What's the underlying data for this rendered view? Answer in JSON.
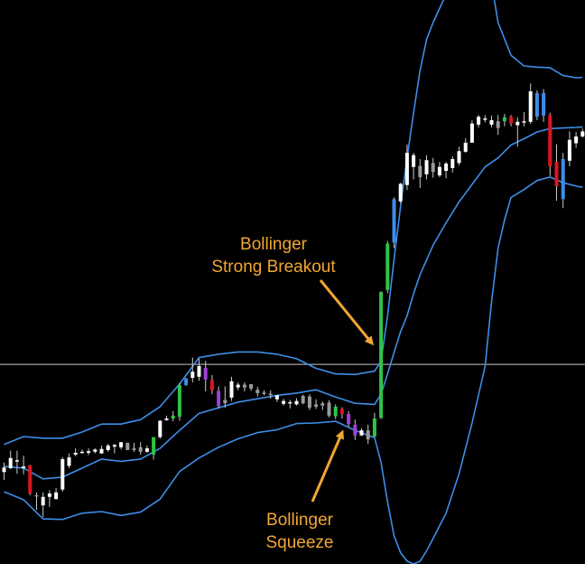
{
  "chart_data": {
    "type": "candlestick",
    "indicator": "Bollinger Bands",
    "colors": {
      "background": "#000000",
      "band": "#3d8ee8",
      "annotation": "#f2a633",
      "crosshair": "#c8c8c8",
      "candle_bull": "#ffffff",
      "candle_neutral": "#9a9a9a",
      "candle_green": "#2fc447",
      "candle_red": "#e0141e",
      "candle_blue": "#3d8ee8",
      "candle_purple": "#a040d8",
      "wick": "#c8c8c8"
    },
    "y_scale": {
      "top_value": 100,
      "bottom_value": 0
    },
    "crosshair_y": 35.4,
    "candles": [
      {
        "x": 0,
        "o": 16.3,
        "h": 18.0,
        "l": 14.9,
        "c": 17.1,
        "k": "white"
      },
      {
        "x": 1,
        "o": 17.0,
        "h": 20.1,
        "l": 16.8,
        "c": 18.8,
        "k": "white"
      },
      {
        "x": 2,
        "o": 18.4,
        "h": 20.1,
        "l": 16.0,
        "c": 18.2,
        "k": "white"
      },
      {
        "x": 3,
        "o": 17.0,
        "h": 19.2,
        "l": 15.9,
        "c": 17.3,
        "k": "white"
      },
      {
        "x": 4,
        "o": 17.5,
        "h": 17.6,
        "l": 12.2,
        "c": 12.5,
        "k": "red"
      },
      {
        "x": 5,
        "o": 12.2,
        "h": 12.7,
        "l": 9.6,
        "c": 12.2,
        "k": "gray"
      },
      {
        "x": 6,
        "o": 10.4,
        "h": 12.7,
        "l": 8.3,
        "c": 11.9,
        "k": "white"
      },
      {
        "x": 7,
        "o": 11.9,
        "h": 13.1,
        "l": 10.1,
        "c": 12.5,
        "k": "white"
      },
      {
        "x": 8,
        "o": 11.5,
        "h": 13.5,
        "l": 11.5,
        "c": 12.7,
        "k": "white"
      },
      {
        "x": 9,
        "o": 13.2,
        "h": 18.9,
        "l": 12.8,
        "c": 18.6,
        "k": "white"
      },
      {
        "x": 10,
        "o": 17.4,
        "h": 19.6,
        "l": 17.0,
        "c": 18.9,
        "k": "white"
      },
      {
        "x": 11,
        "o": 19.4,
        "h": 20.5,
        "l": 19.1,
        "c": 19.7,
        "k": "white"
      },
      {
        "x": 12,
        "o": 19.7,
        "h": 20.3,
        "l": 19.6,
        "c": 19.9,
        "k": "white"
      },
      {
        "x": 13,
        "o": 19.7,
        "h": 20.5,
        "l": 19.3,
        "c": 20.0,
        "k": "white"
      },
      {
        "x": 14,
        "o": 19.9,
        "h": 20.5,
        "l": 19.6,
        "c": 20.3,
        "k": "white"
      },
      {
        "x": 15,
        "o": 19.6,
        "h": 21.0,
        "l": 19.6,
        "c": 20.4,
        "k": "white"
      },
      {
        "x": 16,
        "o": 20.2,
        "h": 21.3,
        "l": 19.9,
        "c": 21.0,
        "k": "white"
      },
      {
        "x": 17,
        "o": 20.8,
        "h": 21.3,
        "l": 19.6,
        "c": 21.1,
        "k": "white"
      },
      {
        "x": 18,
        "o": 21.6,
        "h": 21.6,
        "l": 20.3,
        "c": 20.7,
        "k": "white"
      },
      {
        "x": 19,
        "o": 21.5,
        "h": 21.5,
        "l": 20.2,
        "c": 20.2,
        "k": "gray"
      },
      {
        "x": 20,
        "o": 20.2,
        "h": 21.5,
        "l": 19.9,
        "c": 20.5,
        "k": "gray"
      },
      {
        "x": 21,
        "o": 19.9,
        "h": 21.6,
        "l": 19.4,
        "c": 20.7,
        "k": "gray"
      },
      {
        "x": 22,
        "o": 19.9,
        "h": 21.0,
        "l": 19.7,
        "c": 20.5,
        "k": "white"
      },
      {
        "x": 23,
        "o": 19.4,
        "h": 22.5,
        "l": 18.5,
        "c": 22.5,
        "k": "green"
      },
      {
        "x": 24,
        "o": 22.5,
        "h": 25.5,
        "l": 22.2,
        "c": 25.4,
        "k": "white"
      },
      {
        "x": 25,
        "o": 25.5,
        "h": 26.3,
        "l": 25.4,
        "c": 25.8,
        "k": "white"
      },
      {
        "x": 26,
        "o": 25.8,
        "h": 27.1,
        "l": 25.3,
        "c": 26.3,
        "k": "green"
      },
      {
        "x": 27,
        "o": 26.1,
        "h": 32.1,
        "l": 25.4,
        "c": 31.7,
        "k": "green"
      },
      {
        "x": 28,
        "o": 31.7,
        "h": 33.0,
        "l": 31.6,
        "c": 32.9,
        "k": "blue"
      },
      {
        "x": 29,
        "o": 33.0,
        "h": 36.6,
        "l": 32.2,
        "c": 34.1,
        "k": "white"
      },
      {
        "x": 30,
        "o": 33.2,
        "h": 36.4,
        "l": 32.5,
        "c": 35.1,
        "k": "white"
      },
      {
        "x": 31,
        "o": 34.8,
        "h": 36.0,
        "l": 30.6,
        "c": 32.7,
        "k": "purple"
      },
      {
        "x": 32,
        "o": 32.6,
        "h": 33.5,
        "l": 30.1,
        "c": 30.8,
        "k": "red"
      },
      {
        "x": 33,
        "o": 30.7,
        "h": 31.5,
        "l": 27.6,
        "c": 28.0,
        "k": "purple"
      },
      {
        "x": 34,
        "o": 28.5,
        "h": 31.5,
        "l": 27.7,
        "c": 29.1,
        "k": "gray"
      },
      {
        "x": 35,
        "o": 29.5,
        "h": 33.2,
        "l": 28.9,
        "c": 32.4,
        "k": "white"
      },
      {
        "x": 36,
        "o": 31.8,
        "h": 32.2,
        "l": 30.8,
        "c": 31.3,
        "k": "white"
      },
      {
        "x": 37,
        "o": 31.3,
        "h": 32.2,
        "l": 30.6,
        "c": 31.8,
        "k": "gray"
      },
      {
        "x": 38,
        "o": 31.9,
        "h": 31.9,
        "l": 30.7,
        "c": 31.1,
        "k": "gray"
      },
      {
        "x": 39,
        "o": 30.9,
        "h": 31.4,
        "l": 29.7,
        "c": 30.3,
        "k": "gray"
      },
      {
        "x": 40,
        "o": 30.4,
        "h": 30.8,
        "l": 29.9,
        "c": 30.4,
        "k": "gray"
      },
      {
        "x": 41,
        "o": 30.2,
        "h": 30.8,
        "l": 29.3,
        "c": 30.1,
        "k": "gray"
      },
      {
        "x": 42,
        "o": 29.9,
        "h": 30.0,
        "l": 28.7,
        "c": 29.2,
        "k": "white"
      },
      {
        "x": 43,
        "o": 28.9,
        "h": 29.3,
        "l": 28.1,
        "c": 28.4,
        "k": "white"
      },
      {
        "x": 44,
        "o": 28.7,
        "h": 29.1,
        "l": 27.6,
        "c": 28.6,
        "k": "white"
      },
      {
        "x": 45,
        "o": 28.3,
        "h": 29.4,
        "l": 28.1,
        "c": 28.9,
        "k": "white"
      },
      {
        "x": 46,
        "o": 28.5,
        "h": 30.0,
        "l": 28.3,
        "c": 29.8,
        "k": "gray"
      },
      {
        "x": 47,
        "o": 29.7,
        "h": 30.1,
        "l": 27.3,
        "c": 27.7,
        "k": "gray"
      },
      {
        "x": 48,
        "o": 27.9,
        "h": 29.2,
        "l": 27.5,
        "c": 28.3,
        "k": "gray"
      },
      {
        "x": 49,
        "o": 28.1,
        "h": 28.8,
        "l": 27.3,
        "c": 28.5,
        "k": "gray"
      },
      {
        "x": 50,
        "o": 28.6,
        "h": 29.0,
        "l": 26.0,
        "c": 26.3,
        "k": "gray"
      },
      {
        "x": 51,
        "o": 26.2,
        "h": 28.3,
        "l": 25.7,
        "c": 27.9,
        "k": "green"
      },
      {
        "x": 52,
        "o": 27.5,
        "h": 27.8,
        "l": 25.8,
        "c": 26.6,
        "k": "red"
      },
      {
        "x": 53,
        "o": 26.6,
        "h": 27.1,
        "l": 24.3,
        "c": 24.8,
        "k": "purple"
      },
      {
        "x": 54,
        "o": 24.7,
        "h": 25.6,
        "l": 22.0,
        "c": 22.8,
        "k": "purple"
      },
      {
        "x": 55,
        "o": 22.8,
        "h": 24.1,
        "l": 22.7,
        "c": 23.7,
        "k": "white"
      },
      {
        "x": 56,
        "o": 23.7,
        "h": 24.7,
        "l": 21.3,
        "c": 22.1,
        "k": "gray"
      },
      {
        "x": 57,
        "o": 22.6,
        "h": 26.8,
        "l": 22.5,
        "c": 25.8,
        "k": "green"
      },
      {
        "x": 58,
        "o": 25.9,
        "h": 48.4,
        "l": 25.7,
        "c": 48.2,
        "k": "green"
      },
      {
        "x": 59,
        "o": 48.6,
        "h": 57.3,
        "l": 48.0,
        "c": 56.8,
        "k": "green"
      },
      {
        "x": 60,
        "o": 57.0,
        "h": 65.0,
        "l": 56.0,
        "c": 64.7,
        "k": "blue"
      },
      {
        "x": 61,
        "o": 64.3,
        "h": 67.6,
        "l": 63.9,
        "c": 67.4,
        "k": "white"
      },
      {
        "x": 62,
        "o": 67.2,
        "h": 74.4,
        "l": 66.3,
        "c": 72.9,
        "k": "white"
      },
      {
        "x": 63,
        "o": 72.5,
        "h": 72.9,
        "l": 68.2,
        "c": 70.4,
        "k": "white"
      },
      {
        "x": 64,
        "o": 70.6,
        "h": 71.8,
        "l": 66.7,
        "c": 68.6,
        "k": "gray"
      },
      {
        "x": 65,
        "o": 69.1,
        "h": 72.5,
        "l": 68.2,
        "c": 71.6,
        "k": "white"
      },
      {
        "x": 66,
        "o": 71.1,
        "h": 72.0,
        "l": 68.5,
        "c": 69.5,
        "k": "gray"
      },
      {
        "x": 67,
        "o": 68.9,
        "h": 71.3,
        "l": 68.6,
        "c": 70.4,
        "k": "white"
      },
      {
        "x": 68,
        "o": 69.7,
        "h": 71.3,
        "l": 68.4,
        "c": 71.0,
        "k": "white"
      },
      {
        "x": 69,
        "o": 70.2,
        "h": 72.3,
        "l": 69.4,
        "c": 71.8,
        "k": "white"
      },
      {
        "x": 70,
        "o": 71.1,
        "h": 74.0,
        "l": 70.7,
        "c": 73.2,
        "k": "white"
      },
      {
        "x": 71,
        "o": 73.1,
        "h": 75.5,
        "l": 72.9,
        "c": 74.7,
        "k": "white"
      },
      {
        "x": 72,
        "o": 74.7,
        "h": 78.7,
        "l": 74.7,
        "c": 78.1,
        "k": "white"
      },
      {
        "x": 73,
        "o": 77.9,
        "h": 79.6,
        "l": 77.4,
        "c": 79.3,
        "k": "white"
      },
      {
        "x": 74,
        "o": 78.9,
        "h": 79.6,
        "l": 78.3,
        "c": 79.0,
        "k": "white"
      },
      {
        "x": 75,
        "o": 78.7,
        "h": 79.5,
        "l": 77.4,
        "c": 77.9,
        "k": "white"
      },
      {
        "x": 76,
        "o": 77.3,
        "h": 79.6,
        "l": 76.1,
        "c": 78.5,
        "k": "gray"
      },
      {
        "x": 77,
        "o": 78.5,
        "h": 79.8,
        "l": 77.6,
        "c": 79.2,
        "k": "green"
      },
      {
        "x": 78,
        "o": 79.3,
        "h": 79.6,
        "l": 77.6,
        "c": 78.1,
        "k": "red"
      },
      {
        "x": 79,
        "o": 77.8,
        "h": 79.2,
        "l": 74.0,
        "c": 78.4,
        "k": "white"
      },
      {
        "x": 80,
        "o": 78.4,
        "h": 80.1,
        "l": 77.6,
        "c": 78.5,
        "k": "white"
      },
      {
        "x": 81,
        "o": 78.4,
        "h": 85.2,
        "l": 78.0,
        "c": 83.8,
        "k": "white"
      },
      {
        "x": 82,
        "o": 83.5,
        "h": 84.0,
        "l": 78.7,
        "c": 79.3,
        "k": "blue"
      },
      {
        "x": 83,
        "o": 79.5,
        "h": 84.2,
        "l": 78.4,
        "c": 83.5,
        "k": "blue"
      },
      {
        "x": 84,
        "o": 79.6,
        "h": 80.0,
        "l": 68.8,
        "c": 70.5,
        "k": "red"
      },
      {
        "x": 85,
        "o": 71.3,
        "h": 74.4,
        "l": 64.4,
        "c": 67.0,
        "k": "red"
      },
      {
        "x": 86,
        "o": 64.7,
        "h": 72.9,
        "l": 63.1,
        "c": 71.8,
        "k": "blue"
      },
      {
        "x": 87,
        "o": 71.5,
        "h": 76.7,
        "l": 70.5,
        "c": 75.2,
        "k": "white"
      },
      {
        "x": 88,
        "o": 74.6,
        "h": 76.6,
        "l": 73.8,
        "c": 75.8,
        "k": "white"
      },
      {
        "x": 89,
        "o": 75.8,
        "h": 77.2,
        "l": 75.6,
        "c": 76.7,
        "k": "white"
      }
    ],
    "bands": {
      "upper": [
        [
          0,
          21.2
        ],
        [
          3,
          22.6
        ],
        [
          6,
          22.3
        ],
        [
          9,
          22.3
        ],
        [
          12,
          23.4
        ],
        [
          15,
          24.8
        ],
        [
          18,
          24.8
        ],
        [
          21,
          25.6
        ],
        [
          24,
          27.9
        ],
        [
          27,
          31.9
        ],
        [
          30,
          36.6
        ],
        [
          33,
          37.2
        ],
        [
          36,
          37.6
        ],
        [
          39,
          37.6
        ],
        [
          42,
          37.2
        ],
        [
          45,
          36.4
        ],
        [
          48,
          34.7
        ],
        [
          51,
          33.7
        ],
        [
          54,
          33.6
        ],
        [
          57,
          34.2
        ],
        [
          58,
          36.0
        ],
        [
          59,
          44.0
        ],
        [
          60,
          54.0
        ],
        [
          61,
          63.4
        ],
        [
          62,
          72.0
        ],
        [
          63,
          80.0
        ],
        [
          64,
          87.5
        ],
        [
          65,
          93.0
        ],
        [
          66,
          96.0
        ],
        [
          68,
          101.0
        ],
        [
          70,
          105.5
        ],
        [
          72,
          109.0
        ],
        [
          73,
          111.0
        ],
        [
          74,
          110.0
        ],
        [
          75,
          103.0
        ],
        [
          76,
          96.0
        ],
        [
          78,
          90.2
        ],
        [
          80,
          88.3
        ],
        [
          82,
          88.1
        ],
        [
          84,
          88.0
        ],
        [
          86,
          86.6
        ],
        [
          88,
          86.2
        ],
        [
          89,
          86.3
        ]
      ],
      "middle": [
        [
          0,
          17.3
        ],
        [
          3,
          17.0
        ],
        [
          6,
          15.1
        ],
        [
          9,
          15.4
        ],
        [
          12,
          17.0
        ],
        [
          15,
          18.6
        ],
        [
          18,
          18.2
        ],
        [
          21,
          18.6
        ],
        [
          24,
          20.5
        ],
        [
          27,
          23.7
        ],
        [
          30,
          26.7
        ],
        [
          33,
          27.7
        ],
        [
          36,
          28.7
        ],
        [
          39,
          29.3
        ],
        [
          42,
          29.9
        ],
        [
          45,
          30.3
        ],
        [
          48,
          30.9
        ],
        [
          51,
          29.6
        ],
        [
          54,
          28.5
        ],
        [
          57,
          28.3
        ],
        [
          58,
          30.1
        ],
        [
          59,
          33.7
        ],
        [
          60,
          37.5
        ],
        [
          61,
          41.2
        ],
        [
          62,
          44.0
        ],
        [
          63,
          47.9
        ],
        [
          64,
          51.3
        ],
        [
          66,
          56.5
        ],
        [
          68,
          60.5
        ],
        [
          70,
          64.2
        ],
        [
          72,
          67.3
        ],
        [
          74,
          70.4
        ],
        [
          76,
          72.0
        ],
        [
          78,
          74.3
        ],
        [
          80,
          75.4
        ],
        [
          82,
          76.6
        ],
        [
          84,
          77.2
        ],
        [
          86,
          77.3
        ],
        [
          88,
          77.4
        ],
        [
          89,
          77.5
        ]
      ],
      "lower": [
        [
          0,
          12.8
        ],
        [
          3,
          11.4
        ],
        [
          6,
          8.0
        ],
        [
          9,
          7.9
        ],
        [
          12,
          9.0
        ],
        [
          15,
          9.3
        ],
        [
          18,
          8.6
        ],
        [
          21,
          9.2
        ],
        [
          24,
          11.5
        ],
        [
          27,
          16.4
        ],
        [
          30,
          18.8
        ],
        [
          33,
          20.7
        ],
        [
          36,
          22.2
        ],
        [
          39,
          23.3
        ],
        [
          42,
          23.8
        ],
        [
          45,
          24.9
        ],
        [
          48,
          25.0
        ],
        [
          51,
          25.3
        ],
        [
          54,
          23.7
        ],
        [
          57,
          22.4
        ],
        [
          58,
          18.0
        ],
        [
          59,
          11.0
        ],
        [
          60,
          5.0
        ],
        [
          61,
          2.0
        ],
        [
          62,
          0.5
        ],
        [
          63,
          0.0
        ],
        [
          64,
          0.5
        ],
        [
          65,
          2.3
        ],
        [
          66,
          4.5
        ],
        [
          68,
          9.0
        ],
        [
          70,
          16.0
        ],
        [
          72,
          25.0
        ],
        [
          74,
          35.0
        ],
        [
          75,
          46.5
        ],
        [
          76,
          56.0
        ],
        [
          77,
          61.0
        ],
        [
          78,
          65.0
        ],
        [
          80,
          66.4
        ],
        [
          82,
          68.0
        ],
        [
          84,
          68.6
        ],
        [
          86,
          67.6
        ],
        [
          88,
          67.0
        ],
        [
          89,
          66.8
        ]
      ]
    },
    "annotations": [
      {
        "lines": [
          "Bollinger",
          "Strong Breakout"
        ],
        "points_to": {
          "x": 58,
          "y": 38.8
        }
      },
      {
        "lines": [
          "Bollinger",
          "Squeeze"
        ],
        "points_to": {
          "x": 53,
          "y": 24.0
        }
      }
    ]
  }
}
